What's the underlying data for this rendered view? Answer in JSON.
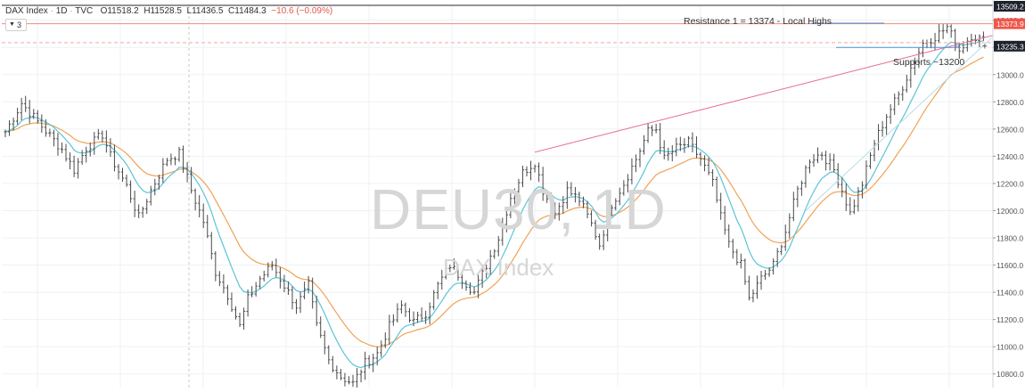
{
  "header": {
    "symbol": "DAX Index",
    "interval": "1D",
    "source": "TVC",
    "ohlc": [
      "O11518.2",
      "H11528.5",
      "L11436.5",
      "C11484.3",
      "−10.6 (−0.09%)"
    ],
    "indicator_count": "3"
  },
  "watermark": {
    "ticker": "DEU30, 1D",
    "name": "DAX Index"
  },
  "annotations": {
    "resistance": "Resistance 1 = 13374 - Local Highs",
    "supports": "Supports ~13200"
  },
  "price_badges": {
    "top": "13509.2",
    "last": "13235.3",
    "red": "13373.9"
  },
  "colors": {
    "bars": "#4a4a4a",
    "ema_fast": "#5bc4d8",
    "ema_slow": "#f0a257",
    "trendline": "#e56b8c",
    "resistance_line": "#f08a7c",
    "support_line": "#4a90d9",
    "grid": "#eef1f5",
    "badge_dark": "#1e222d"
  },
  "chart_data": {
    "type": "ohlc",
    "ylim": [
      10700,
      13509.2
    ],
    "yticks": [
      10800,
      11000,
      11200,
      11400,
      11600,
      11800,
      12000,
      12200,
      12400,
      12600,
      12800,
      13000,
      13200,
      13400
    ],
    "ytick_labels": [
      "10800.0",
      "11000.0",
      "11200.0",
      "11400.0",
      "11600.0",
      "11800.0",
      "12000.0",
      "12200.0",
      "12400.0",
      "12600.0",
      "12800.0",
      "13000.0",
      "13200.0",
      "13400.0"
    ],
    "grid": true,
    "price_path": [
      [
        0,
        12580
      ],
      [
        4,
        12790
      ],
      [
        9,
        12620
      ],
      [
        14,
        12450
      ],
      [
        17,
        12300
      ],
      [
        20,
        12460
      ],
      [
        24,
        12560
      ],
      [
        26,
        12400
      ],
      [
        30,
        12180
      ],
      [
        33,
        11950
      ],
      [
        36,
        12150
      ],
      [
        40,
        12380
      ],
      [
        43,
        12420
      ],
      [
        46,
        12150
      ],
      [
        49,
        11920
      ],
      [
        52,
        11550
      ],
      [
        55,
        11380
      ],
      [
        58,
        11150
      ],
      [
        60,
        11350
      ],
      [
        63,
        11500
      ],
      [
        66,
        11600
      ],
      [
        69,
        11450
      ],
      [
        72,
        11300
      ],
      [
        75,
        11450
      ],
      [
        77,
        11150
      ],
      [
        80,
        10900
      ],
      [
        83,
        10780
      ],
      [
        86,
        10730
      ],
      [
        89,
        10880
      ],
      [
        92,
        10950
      ],
      [
        95,
        11150
      ],
      [
        98,
        11300
      ],
      [
        101,
        11180
      ],
      [
        104,
        11250
      ],
      [
        107,
        11450
      ],
      [
        110,
        11600
      ],
      [
        113,
        11500
      ],
      [
        116,
        11400
      ],
      [
        119,
        11600
      ],
      [
        122,
        11800
      ],
      [
        125,
        12100
      ],
      [
        128,
        12280
      ],
      [
        131,
        12360
      ],
      [
        133,
        12150
      ],
      [
        136,
        11980
      ],
      [
        139,
        12150
      ],
      [
        142,
        12080
      ],
      [
        145,
        11900
      ],
      [
        147,
        11750
      ],
      [
        150,
        12050
      ],
      [
        153,
        12200
      ],
      [
        156,
        12380
      ],
      [
        159,
        12580
      ],
      [
        161,
        12600
      ],
      [
        163,
        12380
      ],
      [
        166,
        12460
      ],
      [
        169,
        12500
      ],
      [
        172,
        12380
      ],
      [
        175,
        12200
      ],
      [
        177,
        11950
      ],
      [
        179,
        11750
      ],
      [
        182,
        11600
      ],
      [
        184,
        11350
      ],
      [
        187,
        11500
      ],
      [
        190,
        11600
      ],
      [
        193,
        11850
      ],
      [
        196,
        12150
      ],
      [
        199,
        12380
      ],
      [
        202,
        12420
      ],
      [
        205,
        12300
      ],
      [
        207,
        12150
      ],
      [
        209,
        11980
      ],
      [
        212,
        12200
      ],
      [
        215,
        12500
      ],
      [
        218,
        12700
      ],
      [
        221,
        12850
      ],
      [
        224,
        13050
      ],
      [
        227,
        13230
      ],
      [
        230,
        13280
      ],
      [
        233,
        13350
      ],
      [
        236,
        13180
      ],
      [
        239,
        13290
      ],
      [
        242,
        13250
      ]
    ],
    "bar_count": 243,
    "ema_fast_period": 9,
    "ema_slow_period": 21,
    "trendline": {
      "from": [
        131,
        12430
      ],
      "to": [
        267,
        13460
      ]
    },
    "resistance_level": 13374,
    "support_level": 13200
  }
}
